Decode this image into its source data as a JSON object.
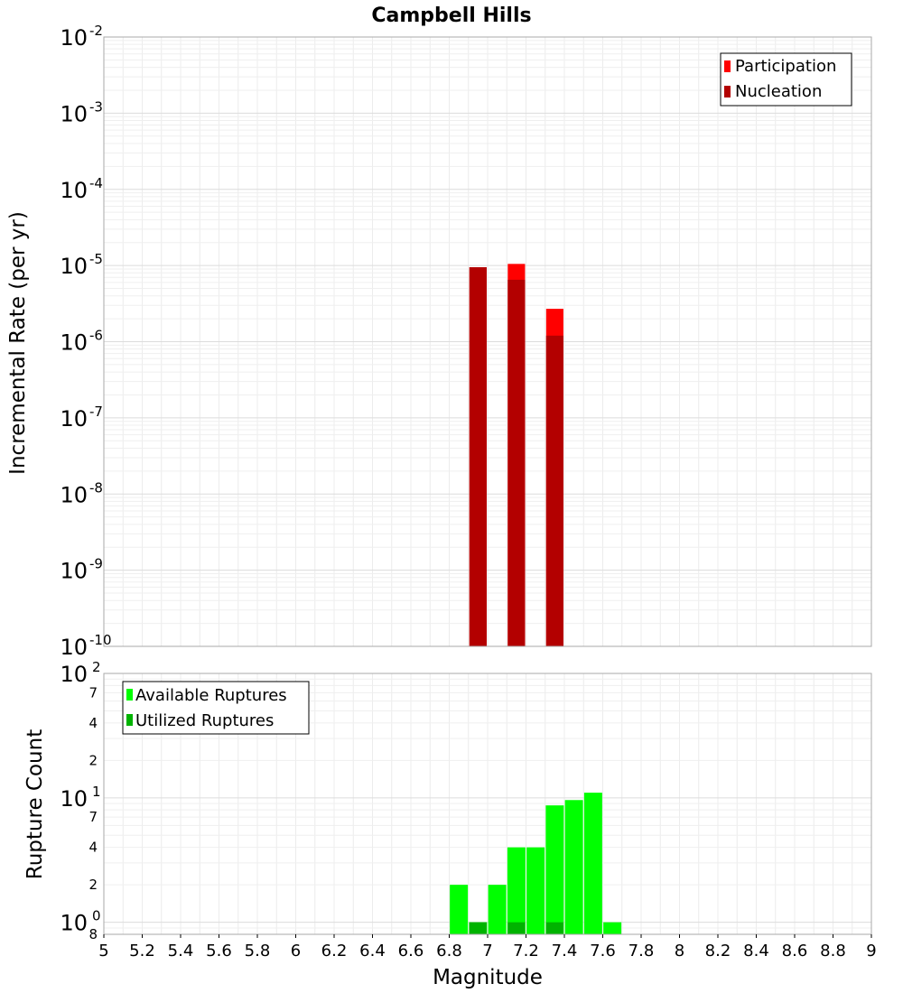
{
  "chart_data": [
    {
      "type": "bar",
      "title": "Campbell Hills",
      "xlabel": "",
      "ylabel": "Incremental Rate (per yr)",
      "xlim": [
        5,
        9
      ],
      "ylim": [
        1e-10,
        0.01
      ],
      "y_scale": "log",
      "grid": true,
      "legend_position": "top-right",
      "series": [
        {
          "name": "Participation",
          "color": "#ff0000",
          "x": [
            6.95,
            7.15,
            7.35
          ],
          "values": [
            9.5e-06,
            1.05e-05,
            2.7e-06
          ]
        },
        {
          "name": "Nucleation",
          "color": "#b30000",
          "x": [
            6.95,
            7.15,
            7.35
          ],
          "values": [
            9.5e-06,
            6.5e-06,
            1.2e-06
          ]
        }
      ],
      "y_ticks": [
        {
          "base": "10",
          "exp": "-2",
          "value": 0.01
        },
        {
          "base": "10",
          "exp": "-3",
          "value": 0.001
        },
        {
          "base": "10",
          "exp": "-4",
          "value": 0.0001
        },
        {
          "base": "10",
          "exp": "-5",
          "value": 1e-05
        },
        {
          "base": "10",
          "exp": "-6",
          "value": 1e-06
        },
        {
          "base": "10",
          "exp": "-7",
          "value": 1e-07
        },
        {
          "base": "10",
          "exp": "-8",
          "value": 1e-08
        },
        {
          "base": "10",
          "exp": "-9",
          "value": 1e-09
        },
        {
          "base": "10",
          "exp": "-10",
          "value": 1e-10
        }
      ]
    },
    {
      "type": "bar",
      "title": "",
      "xlabel": "Magnitude",
      "ylabel": "Rupture Count",
      "xlim": [
        5,
        9
      ],
      "ylim": [
        0.8,
        100
      ],
      "y_scale": "log",
      "grid": true,
      "legend_position": "top-left",
      "series": [
        {
          "name": "Available Ruptures",
          "color": "#00ff00",
          "x": [
            6.85,
            6.95,
            7.05,
            7.15,
            7.25,
            7.35,
            7.45,
            7.55,
            7.65
          ],
          "values": [
            2,
            1,
            2,
            4,
            4,
            8.7,
            9.6,
            11,
            1
          ]
        },
        {
          "name": "Utilized Ruptures",
          "color": "#00b300",
          "x": [
            6.95,
            7.15,
            7.35
          ],
          "values": [
            1,
            1,
            1
          ]
        }
      ],
      "y_ticks": [
        {
          "base": "10",
          "exp": "2",
          "value": 100,
          "style": "major"
        },
        {
          "base": "7",
          "exp": "",
          "value": 70,
          "style": "minor"
        },
        {
          "base": "4",
          "exp": "",
          "value": 40,
          "style": "minor"
        },
        {
          "base": "2",
          "exp": "",
          "value": 20,
          "style": "minor"
        },
        {
          "base": "10",
          "exp": "1",
          "value": 10,
          "style": "major"
        },
        {
          "base": "7",
          "exp": "",
          "value": 7,
          "style": "minor"
        },
        {
          "base": "4",
          "exp": "",
          "value": 4,
          "style": "minor"
        },
        {
          "base": "2",
          "exp": "",
          "value": 2,
          "style": "minor"
        },
        {
          "base": "10",
          "exp": "0",
          "value": 1,
          "style": "major"
        },
        {
          "base": "8",
          "exp": "",
          "value": 0.8,
          "style": "minor"
        }
      ],
      "x_ticks": [
        "5",
        "5.2",
        "5.4",
        "5.6",
        "5.8",
        "6",
        "6.2",
        "6.4",
        "6.6",
        "6.8",
        "7",
        "7.2",
        "7.4",
        "7.6",
        "7.8",
        "8",
        "8.2",
        "8.4",
        "8.6",
        "8.8",
        "9"
      ]
    }
  ]
}
